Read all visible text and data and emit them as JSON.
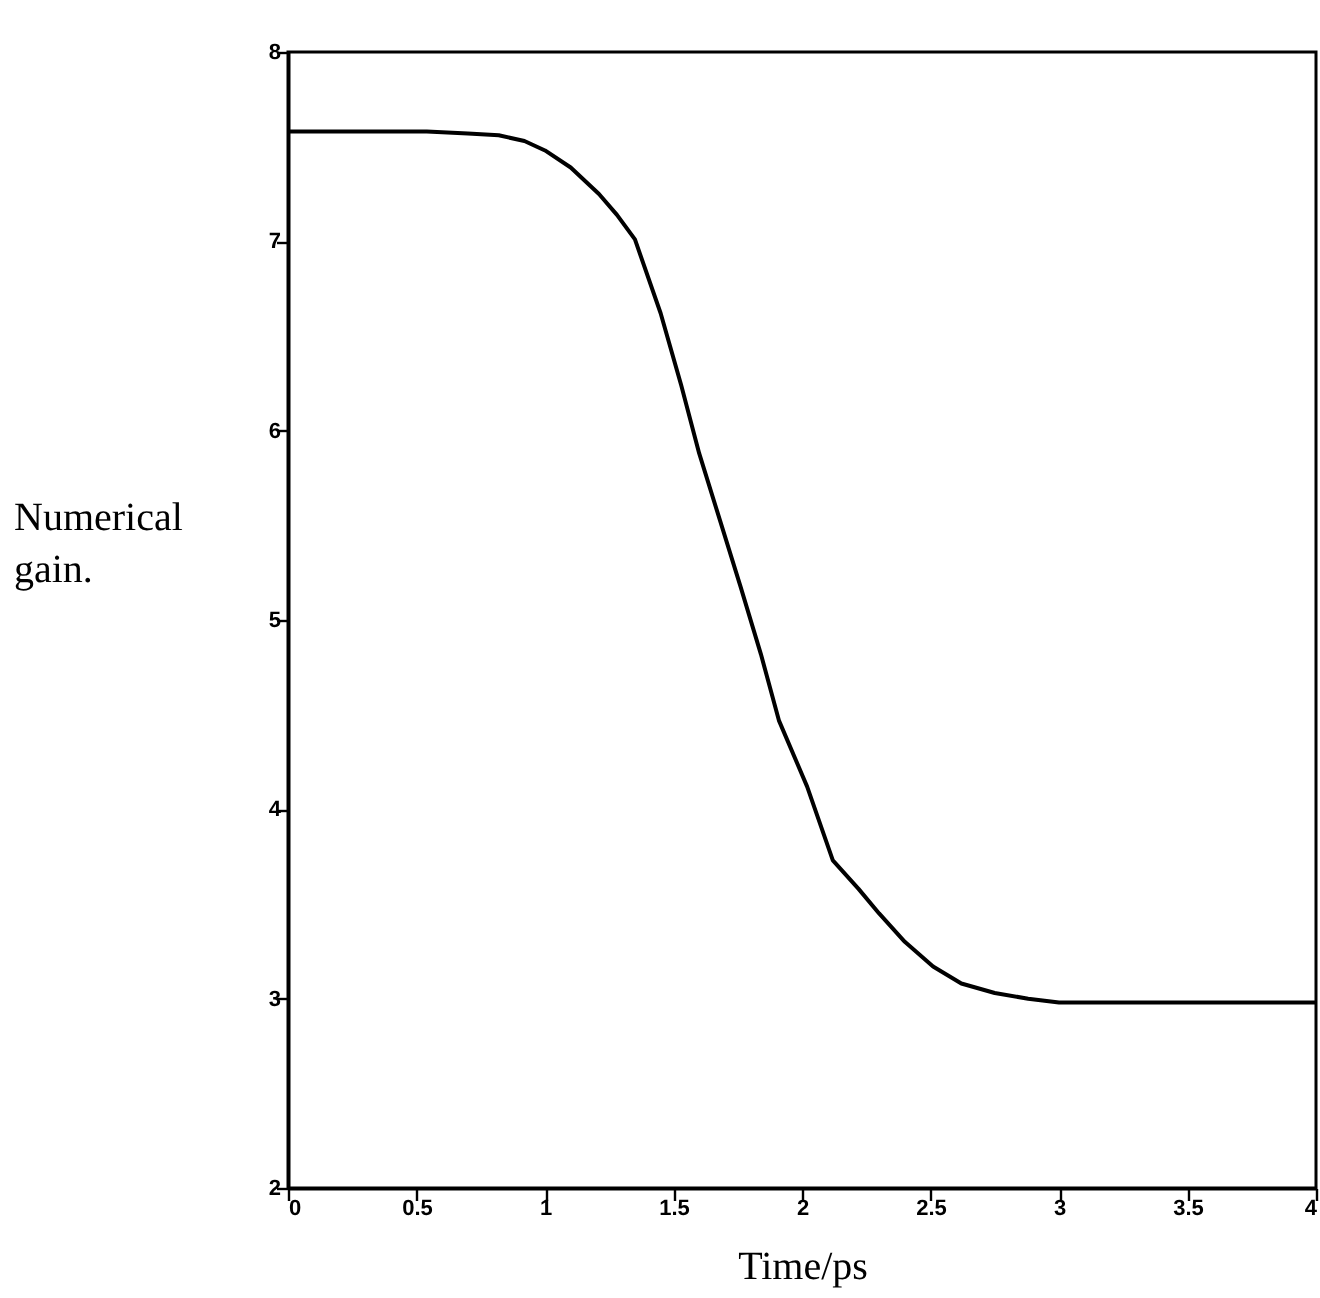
{
  "chart_data": {
    "type": "line",
    "xlabel": "Time/ps",
    "ylabel": "Numerical gain.",
    "x": [
      0,
      0.3,
      0.54,
      0.7,
      0.82,
      0.92,
      1.0,
      1.1,
      1.21,
      1.28,
      1.35,
      1.45,
      1.53,
      1.6,
      1.68,
      1.76,
      1.84,
      1.91,
      2.02,
      2.12,
      2.22,
      2.3,
      2.4,
      2.51,
      2.62,
      2.75,
      2.88,
      3.0,
      3.5,
      4.0
    ],
    "series": [
      {
        "color": "#000000",
        "values": [
          7.58,
          7.58,
          7.58,
          7.57,
          7.56,
          7.53,
          7.48,
          7.39,
          7.25,
          7.14,
          7.01,
          6.62,
          6.24,
          5.88,
          5.53,
          5.18,
          4.82,
          4.47,
          4.12,
          3.73,
          3.58,
          3.45,
          3.3,
          3.17,
          3.08,
          3.03,
          3.0,
          2.98,
          2.98,
          2.98
        ]
      }
    ],
    "xlim": [
      0,
      4
    ],
    "ylim": [
      2,
      8
    ],
    "xticks": [
      0,
      0.5,
      1,
      1.5,
      2,
      2.5,
      3,
      3.5,
      4
    ],
    "yticks": [
      2,
      3,
      4,
      5,
      6,
      7,
      8
    ],
    "grid": false,
    "marker": "none",
    "line_style": "solid"
  }
}
